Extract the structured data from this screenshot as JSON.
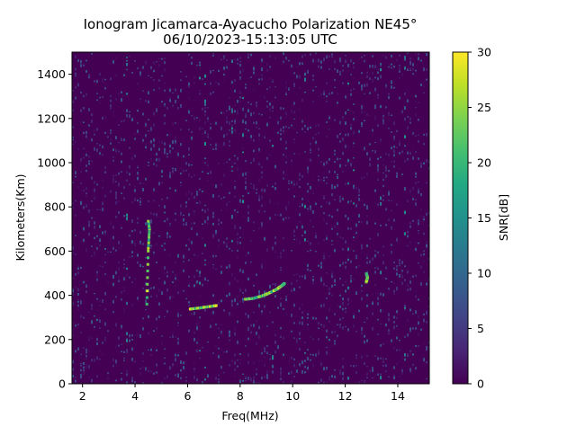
{
  "chart_data": {
    "type": "heatmap",
    "title": "Ionogram Jicamarca-Ayacucho Polarization NE45°",
    "subtitle": "06/10/2023-15:13:05 UTC",
    "xlabel": "Freq(MHz)",
    "ylabel": "Kilometers(Km)",
    "xlim": [
      1.6,
      15.2
    ],
    "ylim": [
      0,
      1500
    ],
    "x_ticks": [
      2,
      4,
      6,
      8,
      10,
      12,
      14
    ],
    "y_ticks": [
      0,
      200,
      400,
      600,
      800,
      1000,
      1200,
      1400
    ],
    "colormap": "viridis",
    "colorbar": {
      "label": "SNR[dB]",
      "range": [
        0,
        30
      ],
      "ticks": [
        0,
        5,
        10,
        15,
        20,
        25,
        30
      ]
    },
    "grid": false,
    "traces": [
      {
        "points": [
          [
            6.1,
            338
          ],
          [
            6.4,
            342
          ],
          [
            6.7,
            347
          ],
          [
            7.0,
            352
          ],
          [
            7.1,
            354
          ]
        ]
      },
      {
        "points": [
          [
            8.2,
            382
          ],
          [
            8.5,
            386
          ],
          [
            8.8,
            396
          ],
          [
            9.1,
            410
          ],
          [
            9.4,
            428
          ],
          [
            9.6,
            445
          ],
          [
            9.7,
            455
          ]
        ]
      },
      {
        "points": [
          [
            4.45,
            360
          ],
          [
            4.5,
            600
          ],
          [
            4.55,
            700
          ],
          [
            4.5,
            740
          ]
        ]
      },
      {
        "points": [
          [
            12.8,
            460
          ],
          [
            12.85,
            480
          ],
          [
            12.8,
            500
          ]
        ]
      }
    ]
  }
}
